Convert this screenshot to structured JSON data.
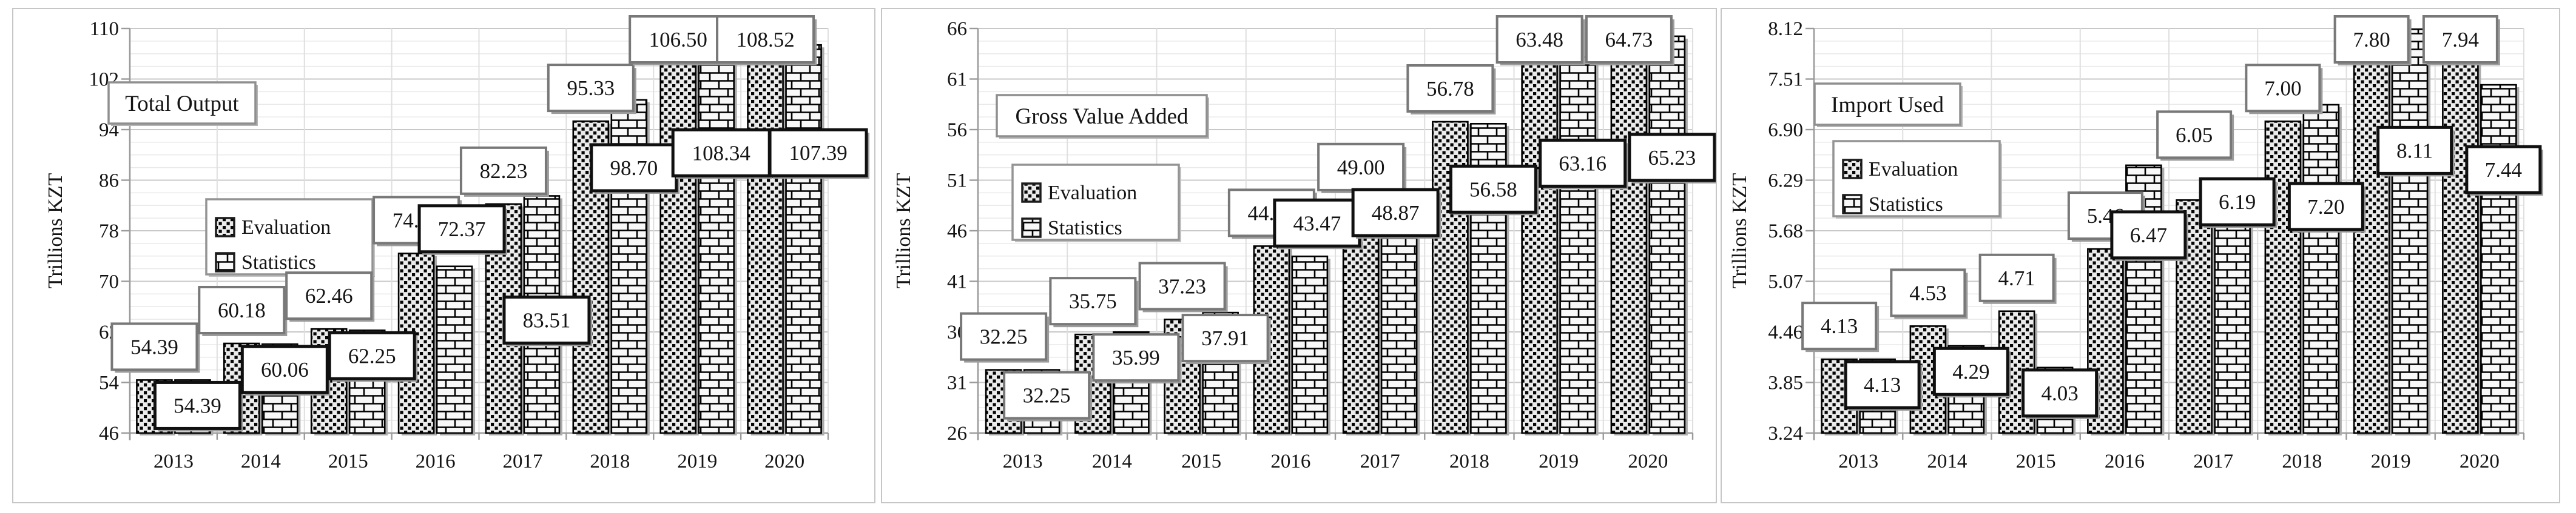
{
  "figure": {
    "description": "Three side-by-side patterned bar charts comparing Evaluation and Statistics series, 2013-2020",
    "unit_label": "Trillions KZT",
    "colors": {
      "bar_outline": "#000000",
      "evaluation_label_border": "#787878",
      "statistics_label_border": "#101010",
      "panel_border": "#c6c6c6",
      "axis": "#9b9b9b",
      "major_grid": "#c8c8c8",
      "minor_grid": "#e9e9e9"
    }
  },
  "chart_data": [
    {
      "type": "bar",
      "title": "Total Output",
      "xlabel": "",
      "ylabel": "Trillions KZT",
      "categories": [
        "2013",
        "2014",
        "2015",
        "2016",
        "2017",
        "2018",
        "2019",
        "2020"
      ],
      "series": [
        {
          "name": "Evaluation",
          "pattern": "dotted",
          "values": [
            54.39,
            60.18,
            62.46,
            74.41,
            82.23,
            95.33,
            106.5,
            108.52
          ]
        },
        {
          "name": "Statistics",
          "pattern": "brick",
          "values": [
            54.39,
            60.06,
            62.25,
            72.37,
            83.51,
            98.7,
            108.34,
            107.39
          ]
        }
      ],
      "ylim": [
        46,
        110
      ],
      "ytick_labels": [
        "46",
        "54",
        "62",
        "70",
        "78",
        "86",
        "94",
        "102",
        "110"
      ],
      "grid": true,
      "legend_position": "inside",
      "legend_entries": [
        "Evaluation",
        "Statistics"
      ]
    },
    {
      "type": "bar",
      "title": "Gross Value Added",
      "xlabel": "",
      "ylabel": "Trillions KZT",
      "categories": [
        "2013",
        "2014",
        "2015",
        "2016",
        "2017",
        "2018",
        "2019",
        "2020"
      ],
      "series": [
        {
          "name": "Evaluation",
          "pattern": "dotted",
          "values": [
            32.25,
            35.75,
            37.23,
            44.48,
            49.0,
            56.78,
            63.48,
            64.73
          ]
        },
        {
          "name": "Statistics",
          "pattern": "brick",
          "values": [
            32.25,
            35.99,
            37.91,
            43.47,
            48.87,
            56.58,
            63.16,
            65.23
          ]
        }
      ],
      "ylim": [
        26,
        66
      ],
      "ytick_labels": [
        "26",
        "31",
        "36",
        "41",
        "46",
        "51",
        "56",
        "61",
        "66"
      ],
      "grid": true,
      "legend_position": "inside",
      "legend_entries": [
        "Evaluation",
        "Statistics"
      ]
    },
    {
      "type": "bar",
      "title": "Import Used",
      "xlabel": "",
      "ylabel": "Trillions KZT",
      "categories": [
        "2013",
        "2014",
        "2015",
        "2016",
        "2017",
        "2018",
        "2019",
        "2020"
      ],
      "series": [
        {
          "name": "Evaluation",
          "pattern": "dotted",
          "values": [
            4.13,
            4.53,
            4.71,
            5.46,
            6.05,
            7.0,
            7.8,
            7.94
          ]
        },
        {
          "name": "Statistics",
          "pattern": "brick",
          "values": [
            4.13,
            4.29,
            4.03,
            6.47,
            6.19,
            7.2,
            8.11,
            7.44
          ]
        }
      ],
      "ylim": [
        3.24,
        8.12
      ],
      "ytick_labels": [
        "3.24",
        "3.85",
        "4.46",
        "5.07",
        "5.68",
        "6.29",
        "6.90",
        "7.51",
        "8.12"
      ],
      "grid": true,
      "legend_position": "inside",
      "legend_entries": [
        "Evaluation",
        "Statistics"
      ]
    }
  ]
}
